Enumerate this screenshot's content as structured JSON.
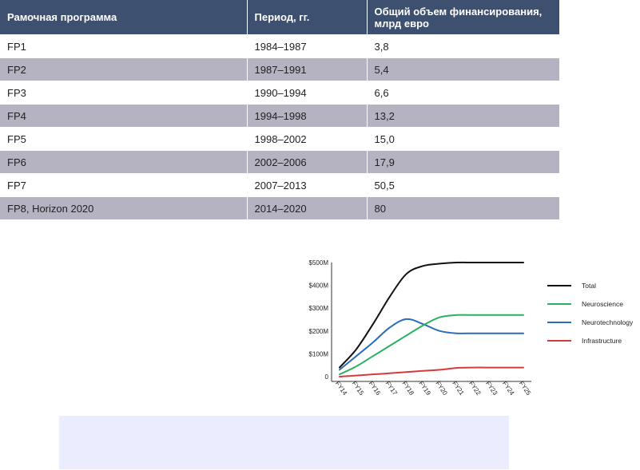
{
  "table": {
    "headers": [
      "Рамочная программа",
      "Период, гг.",
      "Общий объем финансирования, млрд евро"
    ],
    "rows": [
      [
        "FP1",
        "1984–1987",
        "3,8"
      ],
      [
        "FP2",
        "1987–1991",
        "5,4"
      ],
      [
        "FP3",
        "1990–1994",
        "6,6"
      ],
      [
        "FP4",
        "1994–1998",
        "13,2"
      ],
      [
        "FP5",
        "1998–2002",
        "15,0"
      ],
      [
        "FP6",
        "2002–2006",
        "17,9"
      ],
      [
        "FP7",
        "2007–2013",
        "50,5"
      ],
      [
        "FP8, Horizon 2020",
        "2014–2020",
        "80"
      ]
    ]
  },
  "chart_data": {
    "type": "line",
    "categories": [
      "FY14",
      "FY15",
      "FY16",
      "FY17",
      "FY18",
      "FY19",
      "FY20",
      "FY21",
      "FY22",
      "FY23",
      "FY24",
      "FY25"
    ],
    "y_ticks": [
      "0",
      "$100M",
      "$200M",
      "$300M",
      "$400M",
      "$500M"
    ],
    "ylim": [
      0,
      500
    ],
    "grid": false,
    "legend_position": "right",
    "series": [
      {
        "name": "Total",
        "color": "#111111",
        "values": [
          40,
          120,
          230,
          350,
          450,
          485,
          495,
          500,
          500,
          500,
          500,
          500
        ]
      },
      {
        "name": "Neuroscience",
        "color": "#2bb061",
        "values": [
          10,
          45,
          90,
          135,
          180,
          225,
          260,
          270,
          270,
          270,
          270,
          270
        ]
      },
      {
        "name": "Neurotechnology",
        "color": "#2a6db8",
        "values": [
          30,
          90,
          150,
          215,
          252,
          230,
          200,
          190,
          190,
          190,
          190,
          190
        ]
      },
      {
        "name": "Infrastructure",
        "color": "#d63b3b",
        "values": [
          0,
          5,
          10,
          15,
          20,
          25,
          30,
          38,
          40,
          40,
          40,
          40
        ]
      }
    ]
  }
}
